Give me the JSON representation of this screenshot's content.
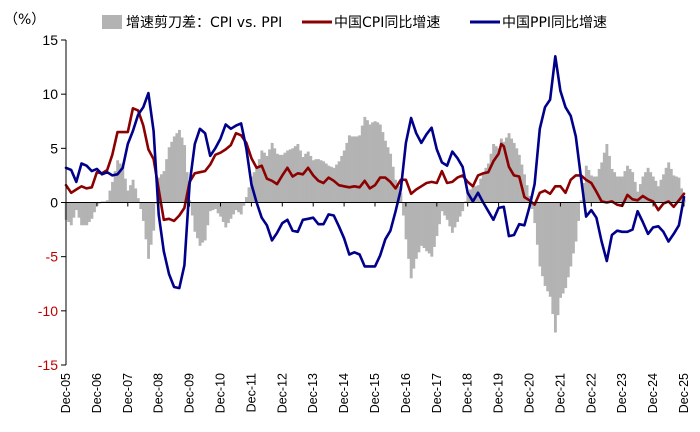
{
  "chart_data": {
    "type": "line",
    "unit_label": "（%）",
    "ylim": [
      -15,
      15
    ],
    "yticks": [
      15,
      10,
      5,
      0,
      -5,
      -10,
      -15
    ],
    "xlim": [
      "2005-12",
      "2025-12"
    ],
    "x_tick_labels": [
      "Dec-05",
      "Dec-06",
      "Dec-07",
      "Dec-08",
      "Dec-09",
      "Dec-10",
      "Dec-11",
      "Dec-12",
      "Dec-13",
      "Dec-14",
      "Dec-15",
      "Dec-16",
      "Dec-17",
      "Dec-18",
      "Dec-19",
      "Dec-20",
      "Dec-21",
      "Dec-22",
      "Dec-23",
      "Dec-24",
      "Dec-25"
    ],
    "grid": false,
    "legend_position": "top",
    "colors": {
      "spread": "#b3b3b3",
      "cpi": "#8b0000",
      "ppi": "#00008b",
      "negative_tick": "#c00000"
    },
    "series": [
      {
        "name": "增速剪刀差：CPI vs. PPI",
        "kind": "area",
        "values": []
      },
      {
        "name": "中国CPI同比增速",
        "kind": "line",
        "points": [
          [
            "2005-12",
            1.6
          ],
          [
            "2006-02",
            0.9
          ],
          [
            "2006-04",
            1.2
          ],
          [
            "2006-06",
            1.5
          ],
          [
            "2006-08",
            1.3
          ],
          [
            "2006-10",
            1.4
          ],
          [
            "2006-12",
            2.8
          ],
          [
            "2007-02",
            2.7
          ],
          [
            "2007-04",
            3.0
          ],
          [
            "2007-06",
            4.4
          ],
          [
            "2007-08",
            6.5
          ],
          [
            "2007-10",
            6.5
          ],
          [
            "2007-12",
            6.5
          ],
          [
            "2008-02",
            8.7
          ],
          [
            "2008-04",
            8.5
          ],
          [
            "2008-06",
            7.1
          ],
          [
            "2008-08",
            4.9
          ],
          [
            "2008-10",
            4.0
          ],
          [
            "2008-12",
            1.2
          ],
          [
            "2009-02",
            -1.6
          ],
          [
            "2009-04",
            -1.5
          ],
          [
            "2009-06",
            -1.7
          ],
          [
            "2009-08",
            -1.2
          ],
          [
            "2009-10",
            -0.5
          ],
          [
            "2009-12",
            1.9
          ],
          [
            "2010-02",
            2.7
          ],
          [
            "2010-04",
            2.8
          ],
          [
            "2010-06",
            2.9
          ],
          [
            "2010-08",
            3.5
          ],
          [
            "2010-10",
            4.4
          ],
          [
            "2010-12",
            4.6
          ],
          [
            "2011-02",
            4.9
          ],
          [
            "2011-04",
            5.3
          ],
          [
            "2011-06",
            6.4
          ],
          [
            "2011-08",
            6.2
          ],
          [
            "2011-10",
            5.5
          ],
          [
            "2011-12",
            4.1
          ],
          [
            "2012-02",
            3.2
          ],
          [
            "2012-04",
            3.4
          ],
          [
            "2012-06",
            2.2
          ],
          [
            "2012-08",
            2.0
          ],
          [
            "2012-10",
            1.7
          ],
          [
            "2012-12",
            2.5
          ],
          [
            "2013-02",
            3.2
          ],
          [
            "2013-04",
            2.4
          ],
          [
            "2013-06",
            2.7
          ],
          [
            "2013-08",
            2.6
          ],
          [
            "2013-10",
            3.2
          ],
          [
            "2013-12",
            2.5
          ],
          [
            "2014-02",
            2.0
          ],
          [
            "2014-04",
            1.8
          ],
          [
            "2014-06",
            2.3
          ],
          [
            "2014-08",
            2.0
          ],
          [
            "2014-10",
            1.6
          ],
          [
            "2014-12",
            1.5
          ],
          [
            "2015-02",
            1.4
          ],
          [
            "2015-04",
            1.5
          ],
          [
            "2015-06",
            1.4
          ],
          [
            "2015-08",
            2.0
          ],
          [
            "2015-10",
            1.3
          ],
          [
            "2015-12",
            1.6
          ],
          [
            "2016-02",
            2.3
          ],
          [
            "2016-04",
            2.3
          ],
          [
            "2016-06",
            1.9
          ],
          [
            "2016-08",
            1.3
          ],
          [
            "2016-10",
            2.1
          ],
          [
            "2016-12",
            2.1
          ],
          [
            "2017-02",
            0.8
          ],
          [
            "2017-04",
            1.2
          ],
          [
            "2017-06",
            1.5
          ],
          [
            "2017-08",
            1.8
          ],
          [
            "2017-10",
            1.9
          ],
          [
            "2017-12",
            1.8
          ],
          [
            "2018-02",
            2.9
          ],
          [
            "2018-04",
            1.8
          ],
          [
            "2018-06",
            1.9
          ],
          [
            "2018-08",
            2.3
          ],
          [
            "2018-10",
            2.5
          ],
          [
            "2018-12",
            1.9
          ],
          [
            "2019-02",
            1.5
          ],
          [
            "2019-04",
            2.5
          ],
          [
            "2019-06",
            2.7
          ],
          [
            "2019-08",
            2.8
          ],
          [
            "2019-10",
            3.8
          ],
          [
            "2019-12",
            4.5
          ],
          [
            "2020-01",
            5.4
          ],
          [
            "2020-02",
            5.2
          ],
          [
            "2020-04",
            3.3
          ],
          [
            "2020-06",
            2.5
          ],
          [
            "2020-08",
            2.4
          ],
          [
            "2020-10",
            0.5
          ],
          [
            "2020-12",
            0.2
          ],
          [
            "2021-02",
            -0.2
          ],
          [
            "2021-04",
            0.9
          ],
          [
            "2021-06",
            1.1
          ],
          [
            "2021-08",
            0.8
          ],
          [
            "2021-10",
            1.5
          ],
          [
            "2021-12",
            1.5
          ],
          [
            "2022-02",
            0.9
          ],
          [
            "2022-04",
            2.1
          ],
          [
            "2022-06",
            2.5
          ],
          [
            "2022-08",
            2.5
          ],
          [
            "2022-10",
            2.1
          ],
          [
            "2022-12",
            1.8
          ],
          [
            "2023-02",
            1.0
          ],
          [
            "2023-04",
            0.1
          ],
          [
            "2023-06",
            0.0
          ],
          [
            "2023-08",
            0.1
          ],
          [
            "2023-10",
            -0.2
          ],
          [
            "2023-12",
            -0.3
          ],
          [
            "2024-02",
            0.7
          ],
          [
            "2024-04",
            0.3
          ],
          [
            "2024-06",
            0.2
          ],
          [
            "2024-08",
            0.6
          ],
          [
            "2024-10",
            0.3
          ],
          [
            "2024-12",
            0.1
          ],
          [
            "2025-02",
            -0.7
          ],
          [
            "2025-04",
            -0.1
          ],
          [
            "2025-06",
            0.1
          ],
          [
            "2025-08",
            -0.4
          ],
          [
            "2025-10",
            0.2
          ],
          [
            "2025-12",
            0.8
          ]
        ]
      },
      {
        "name": "中国PPI同比增速",
        "kind": "line",
        "points": [
          [
            "2005-12",
            3.2
          ],
          [
            "2006-02",
            3.0
          ],
          [
            "2006-04",
            1.9
          ],
          [
            "2006-06",
            3.6
          ],
          [
            "2006-08",
            3.4
          ],
          [
            "2006-10",
            2.9
          ],
          [
            "2006-12",
            3.1
          ],
          [
            "2007-02",
            2.6
          ],
          [
            "2007-04",
            2.8
          ],
          [
            "2007-06",
            2.5
          ],
          [
            "2007-08",
            2.6
          ],
          [
            "2007-10",
            3.2
          ],
          [
            "2007-12",
            5.4
          ],
          [
            "2008-02",
            6.6
          ],
          [
            "2008-04",
            8.1
          ],
          [
            "2008-06",
            8.8
          ],
          [
            "2008-08",
            10.1
          ],
          [
            "2008-10",
            6.6
          ],
          [
            "2008-12",
            -1.1
          ],
          [
            "2009-02",
            -4.5
          ],
          [
            "2009-04",
            -6.6
          ],
          [
            "2009-06",
            -7.8
          ],
          [
            "2009-08",
            -7.9
          ],
          [
            "2009-10",
            -5.8
          ],
          [
            "2009-12",
            1.7
          ],
          [
            "2010-02",
            5.4
          ],
          [
            "2010-04",
            6.8
          ],
          [
            "2010-06",
            6.4
          ],
          [
            "2010-08",
            4.3
          ],
          [
            "2010-10",
            5.0
          ],
          [
            "2010-12",
            5.9
          ],
          [
            "2011-02",
            7.2
          ],
          [
            "2011-04",
            6.8
          ],
          [
            "2011-06",
            7.1
          ],
          [
            "2011-08",
            7.3
          ],
          [
            "2011-10",
            5.0
          ],
          [
            "2011-12",
            1.7
          ],
          [
            "2012-02",
            0.0
          ],
          [
            "2012-04",
            -1.4
          ],
          [
            "2012-06",
            -2.1
          ],
          [
            "2012-08",
            -3.5
          ],
          [
            "2012-10",
            -2.8
          ],
          [
            "2012-12",
            -1.9
          ],
          [
            "2013-02",
            -1.6
          ],
          [
            "2013-04",
            -2.6
          ],
          [
            "2013-06",
            -2.7
          ],
          [
            "2013-08",
            -1.6
          ],
          [
            "2013-10",
            -1.5
          ],
          [
            "2013-12",
            -1.4
          ],
          [
            "2014-02",
            -2.0
          ],
          [
            "2014-04",
            -2.0
          ],
          [
            "2014-06",
            -1.1
          ],
          [
            "2014-08",
            -1.2
          ],
          [
            "2014-10",
            -2.2
          ],
          [
            "2014-12",
            -3.3
          ],
          [
            "2015-02",
            -4.8
          ],
          [
            "2015-04",
            -4.6
          ],
          [
            "2015-06",
            -4.8
          ],
          [
            "2015-08",
            -5.9
          ],
          [
            "2015-10",
            -5.9
          ],
          [
            "2015-12",
            -5.9
          ],
          [
            "2016-02",
            -4.9
          ],
          [
            "2016-04",
            -3.4
          ],
          [
            "2016-06",
            -2.6
          ],
          [
            "2016-08",
            -0.8
          ],
          [
            "2016-10",
            1.2
          ],
          [
            "2016-12",
            5.5
          ],
          [
            "2017-02",
            7.8
          ],
          [
            "2017-04",
            6.4
          ],
          [
            "2017-06",
            5.5
          ],
          [
            "2017-08",
            6.3
          ],
          [
            "2017-10",
            6.9
          ],
          [
            "2017-12",
            4.9
          ],
          [
            "2018-02",
            3.7
          ],
          [
            "2018-04",
            3.4
          ],
          [
            "2018-06",
            4.7
          ],
          [
            "2018-08",
            4.1
          ],
          [
            "2018-10",
            3.3
          ],
          [
            "2018-12",
            0.9
          ],
          [
            "2019-02",
            0.1
          ],
          [
            "2019-04",
            0.9
          ],
          [
            "2019-06",
            0.0
          ],
          [
            "2019-08",
            -0.8
          ],
          [
            "2019-10",
            -1.6
          ],
          [
            "2019-12",
            -0.5
          ],
          [
            "2020-02",
            -0.4
          ],
          [
            "2020-04",
            -3.1
          ],
          [
            "2020-06",
            -3.0
          ],
          [
            "2020-08",
            -2.0
          ],
          [
            "2020-10",
            -2.1
          ],
          [
            "2020-12",
            -0.4
          ],
          [
            "2021-02",
            1.7
          ],
          [
            "2021-04",
            6.8
          ],
          [
            "2021-06",
            8.8
          ],
          [
            "2021-08",
            9.5
          ],
          [
            "2021-10",
            13.5
          ],
          [
            "2021-12",
            10.3
          ],
          [
            "2022-02",
            8.8
          ],
          [
            "2022-04",
            8.0
          ],
          [
            "2022-06",
            6.1
          ],
          [
            "2022-08",
            2.3
          ],
          [
            "2022-10",
            -1.3
          ],
          [
            "2022-12",
            -0.7
          ],
          [
            "2023-02",
            -1.4
          ],
          [
            "2023-04",
            -3.6
          ],
          [
            "2023-06",
            -5.4
          ],
          [
            "2023-08",
            -3.0
          ],
          [
            "2023-10",
            -2.6
          ],
          [
            "2023-12",
            -2.7
          ],
          [
            "2024-02",
            -2.7
          ],
          [
            "2024-04",
            -2.5
          ],
          [
            "2024-06",
            -0.8
          ],
          [
            "2024-08",
            -1.8
          ],
          [
            "2024-10",
            -2.9
          ],
          [
            "2024-12",
            -2.3
          ],
          [
            "2025-02",
            -2.2
          ],
          [
            "2025-04",
            -2.7
          ],
          [
            "2025-06",
            -3.6
          ],
          [
            "2025-08",
            -2.9
          ],
          [
            "2025-10",
            -2.1
          ],
          [
            "2025-12",
            0.5
          ]
        ]
      }
    ]
  }
}
